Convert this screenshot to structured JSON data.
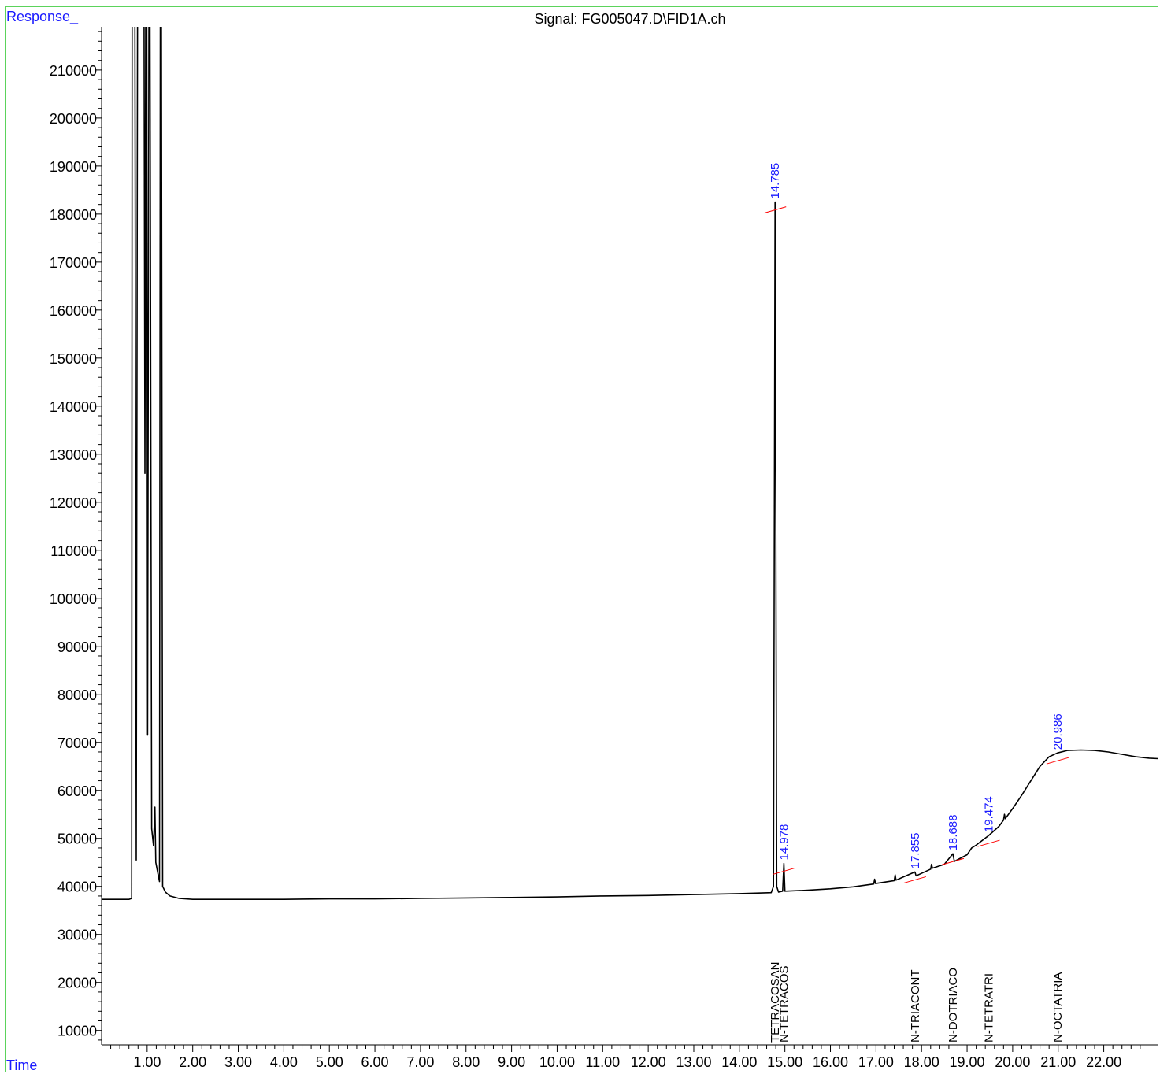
{
  "header": {
    "y_axis_label": "Response_",
    "x_axis_label": "Time",
    "title": "Signal: FG005047.D\\FID1A.ch"
  },
  "colors": {
    "trace": "#000000",
    "annotation": "#1a1aff",
    "baseline": "#ff0000",
    "frame": "#5bd35b"
  },
  "chart_data": {
    "type": "line",
    "title": "Signal: FG005047.D\\FID1A.ch",
    "xlabel": "Time",
    "ylabel": "Response_",
    "xlim": [
      0.0,
      23.2
    ],
    "ylim": [
      7000,
      219000
    ],
    "x_ticks": [
      "1.00",
      "2.00",
      "3.00",
      "4.00",
      "5.00",
      "6.00",
      "7.00",
      "8.00",
      "9.00",
      "10.00",
      "11.00",
      "12.00",
      "13.00",
      "14.00",
      "15.00",
      "16.00",
      "17.00",
      "18.00",
      "19.00",
      "20.00",
      "21.00",
      "22.00"
    ],
    "y_ticks": [
      "10000",
      "20000",
      "30000",
      "40000",
      "50000",
      "60000",
      "70000",
      "80000",
      "90000",
      "100000",
      "110000",
      "120000",
      "130000",
      "140000",
      "150000",
      "160000",
      "170000",
      "180000",
      "190000",
      "200000",
      "210000"
    ],
    "series": [
      {
        "values": [
          [
            0.0,
            37300
          ],
          [
            0.6,
            37300
          ],
          [
            0.66,
            37500
          ],
          [
            0.67,
            230000
          ],
          [
            0.73,
            230000
          ],
          [
            0.76,
            45500
          ],
          [
            0.79,
            230000
          ],
          [
            0.93,
            230000
          ],
          [
            0.95,
            126000
          ],
          [
            0.97,
            230000
          ],
          [
            0.99,
            230000
          ],
          [
            1.01,
            71500
          ],
          [
            1.04,
            230000
          ],
          [
            1.06,
            230000
          ],
          [
            1.1,
            52000
          ],
          [
            1.14,
            48500
          ],
          [
            1.17,
            56500
          ],
          [
            1.19,
            45000
          ],
          [
            1.23,
            43000
          ],
          [
            1.27,
            41000
          ],
          [
            1.29,
            230000
          ],
          [
            1.31,
            230000
          ],
          [
            1.34,
            40000
          ],
          [
            1.4,
            38800
          ],
          [
            1.5,
            38000
          ],
          [
            1.7,
            37500
          ],
          [
            2.0,
            37300
          ],
          [
            3.0,
            37300
          ],
          [
            4.0,
            37300
          ],
          [
            5.0,
            37400
          ],
          [
            6.0,
            37400
          ],
          [
            7.0,
            37500
          ],
          [
            8.0,
            37600
          ],
          [
            9.0,
            37700
          ],
          [
            10.0,
            37800
          ],
          [
            11.0,
            38000
          ],
          [
            12.0,
            38100
          ],
          [
            13.0,
            38300
          ],
          [
            14.0,
            38500
          ],
          [
            14.7,
            38700
          ],
          [
            14.75,
            40000
          ],
          [
            14.785,
            182500
          ],
          [
            14.82,
            40000
          ],
          [
            14.86,
            38800
          ],
          [
            14.95,
            39000
          ],
          [
            14.978,
            44800
          ],
          [
            15.0,
            39000
          ],
          [
            15.5,
            39200
          ],
          [
            16.0,
            39500
          ],
          [
            16.5,
            39900
          ],
          [
            16.95,
            40500
          ],
          [
            16.97,
            41500
          ],
          [
            16.99,
            40600
          ],
          [
            17.4,
            41200
          ],
          [
            17.42,
            42400
          ],
          [
            17.44,
            41300
          ],
          [
            17.855,
            43000
          ],
          [
            17.88,
            42200
          ],
          [
            18.2,
            43600
          ],
          [
            18.22,
            44600
          ],
          [
            18.24,
            43800
          ],
          [
            18.5,
            44600
          ],
          [
            18.688,
            46800
          ],
          [
            18.72,
            45200
          ],
          [
            19.0,
            46600
          ],
          [
            19.1,
            48000
          ],
          [
            19.2,
            48600
          ],
          [
            19.474,
            50600
          ],
          [
            19.7,
            52500
          ],
          [
            19.8,
            53800
          ],
          [
            19.82,
            55000
          ],
          [
            19.84,
            54100
          ],
          [
            20.0,
            56200
          ],
          [
            20.2,
            59000
          ],
          [
            20.4,
            62000
          ],
          [
            20.6,
            65000
          ],
          [
            20.8,
            67000
          ],
          [
            20.986,
            67800
          ],
          [
            21.2,
            68300
          ],
          [
            21.5,
            68400
          ],
          [
            21.8,
            68300
          ],
          [
            22.1,
            68000
          ],
          [
            22.4,
            67500
          ],
          [
            22.7,
            67000
          ],
          [
            23.0,
            66700
          ],
          [
            23.2,
            66600
          ]
        ]
      }
    ],
    "peak_labels": [
      {
        "time": "14.785",
        "x": 14.785,
        "y": 182500
      },
      {
        "time": "14.978",
        "x": 14.978,
        "y": 44800
      },
      {
        "time": "17.855",
        "x": 17.855,
        "y": 43000
      },
      {
        "time": "18.688",
        "x": 18.688,
        "y": 46800
      },
      {
        "time": "19.474",
        "x": 19.474,
        "y": 50600
      },
      {
        "time": "20.986",
        "x": 20.986,
        "y": 67800
      }
    ],
    "compound_labels": [
      {
        "name": "TETRACOSAN",
        "x": 14.785
      },
      {
        "name": "N-TETRACOS",
        "x": 14.978
      },
      {
        "name": "N-TRIACONT",
        "x": 17.855
      },
      {
        "name": "N-DOTRIACO",
        "x": 18.688
      },
      {
        "name": "N-TETRATRI",
        "x": 19.474
      },
      {
        "name": "N-OCTATRIA",
        "x": 20.986
      }
    ]
  }
}
